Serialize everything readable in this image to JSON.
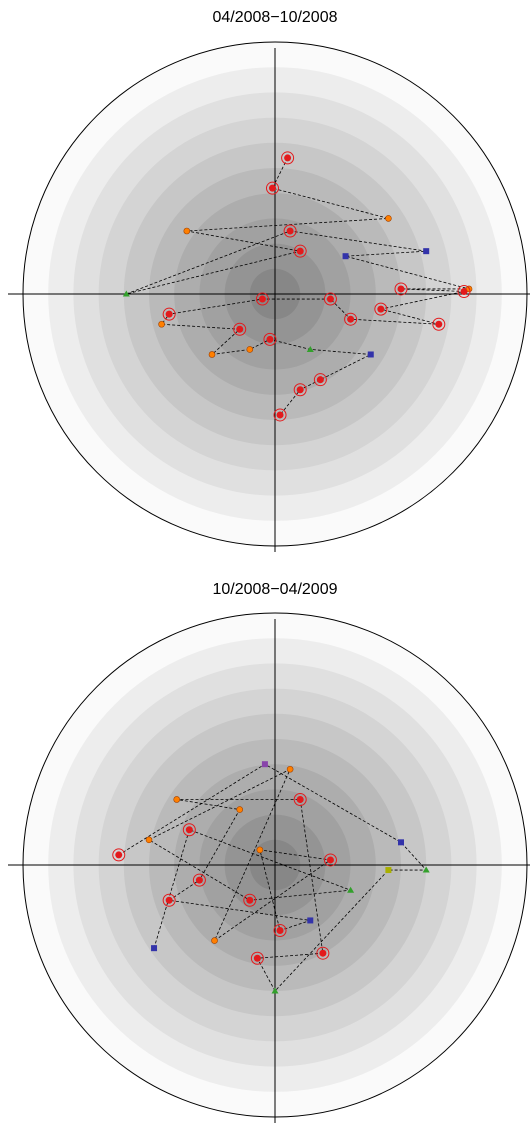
{
  "chart_data": [
    {
      "type": "scatter",
      "title": "04/2008−10/2008",
      "xlim": [
        -1,
        1
      ],
      "ylim": [
        -1,
        1
      ],
      "rings": 10,
      "axes": true,
      "line_color": "#000000",
      "series": [
        {
          "x": [
            0.05,
            -0.01,
            0.45,
            -0.35,
            0.1,
            -0.59,
            0.06,
            0.6,
            0.28,
            0.77,
            0.5,
            0.75,
            0.42,
            0.65,
            0.3,
            0.22,
            -0.05,
            -0.42,
            -0.45,
            -0.14,
            -0.25,
            -0.1,
            -0.02,
            0.14,
            0.38,
            0.18,
            0.1,
            0.02
          ],
          "values": [
            0.54,
            0.42,
            0.3,
            0.25,
            0.17,
            0.0,
            0.25,
            0.17,
            0.15,
            0.02,
            0.02,
            0.01,
            -0.06,
            -0.12,
            -0.1,
            -0.02,
            -0.02,
            -0.08,
            -0.12,
            -0.14,
            -0.24,
            -0.22,
            -0.18,
            -0.22,
            -0.24,
            -0.34,
            -0.38,
            -0.48
          ],
          "colors": [
            "#e31a1c",
            "#e31a1c",
            "#ff7f00",
            "#ff7f00",
            "#e31a1c",
            "#33a02c",
            "#e31a1c",
            "#3333aa",
            "#3333aa",
            "#ff7f00",
            "#e31a1c",
            "#e31a1c",
            "#e31a1c",
            "#e31a1c",
            "#e31a1c",
            "#e31a1c",
            "#e31a1c",
            "#e31a1c",
            "#ff7f00",
            "#e31a1c",
            "#ff7f00",
            "#ff7f00",
            "#e31a1c",
            "#33a02c",
            "#3333aa",
            "#e31a1c",
            "#e31a1c",
            "#e31a1c"
          ],
          "markers": [
            "ring",
            "ring",
            "dot",
            "dot",
            "ring",
            "triangle",
            "ring",
            "square",
            "square",
            "dot",
            "ring",
            "ring",
            "ring",
            "ring",
            "ring",
            "ring",
            "ring",
            "ring",
            "dot",
            "ring",
            "dot",
            "dot",
            "ring",
            "triangle",
            "square",
            "ring",
            "ring",
            "ring"
          ]
        }
      ]
    },
    {
      "type": "scatter",
      "title": "10/2008−04/2009",
      "xlim": [
        -1,
        1
      ],
      "ylim": [
        -1,
        1
      ],
      "rings": 10,
      "axes": true,
      "line_color": "#000000",
      "series": [
        {
          "x": [
            -0.62,
            -0.04,
            0.5,
            0.6,
            0.45,
            0.0,
            -0.07,
            0.19,
            0.1,
            -0.39,
            -0.14,
            -0.3,
            -0.42,
            0.14,
            0.02,
            -0.06,
            0.22,
            -0.24,
            0.06,
            -0.5,
            -0.1,
            0.3,
            -0.34,
            -0.48
          ],
          "values": [
            0.04,
            0.4,
            0.09,
            -0.02,
            -0.02,
            -0.5,
            -0.37,
            -0.35,
            0.26,
            0.26,
            0.22,
            -0.06,
            -0.14,
            -0.22,
            -0.26,
            0.06,
            0.02,
            -0.3,
            0.38,
            0.1,
            -0.14,
            -0.1,
            0.14,
            -0.33
          ],
          "colors": [
            "#e31a1c",
            "#8844aa",
            "#3333aa",
            "#33a02c",
            "#aab000",
            "#33a02c",
            "#e31a1c",
            "#e31a1c",
            "#e31a1c",
            "#ff7f00",
            "#ff7f00",
            "#e31a1c",
            "#e31a1c",
            "#3333aa",
            "#e31a1c",
            "#ff7f00",
            "#e31a1c",
            "#ff7f00",
            "#ff7f00",
            "#ff7f00",
            "#e31a1c",
            "#33a02c",
            "#e31a1c",
            "#3333aa"
          ],
          "markers": [
            "ring",
            "square",
            "square",
            "triangle",
            "square",
            "triangle",
            "ring",
            "ring",
            "ring",
            "dot",
            "dot",
            "ring",
            "ring",
            "square",
            "ring",
            "dot",
            "ring",
            "dot",
            "dot",
            "dot",
            "ring",
            "triangle",
            "ring",
            "square"
          ]
        }
      ]
    }
  ]
}
